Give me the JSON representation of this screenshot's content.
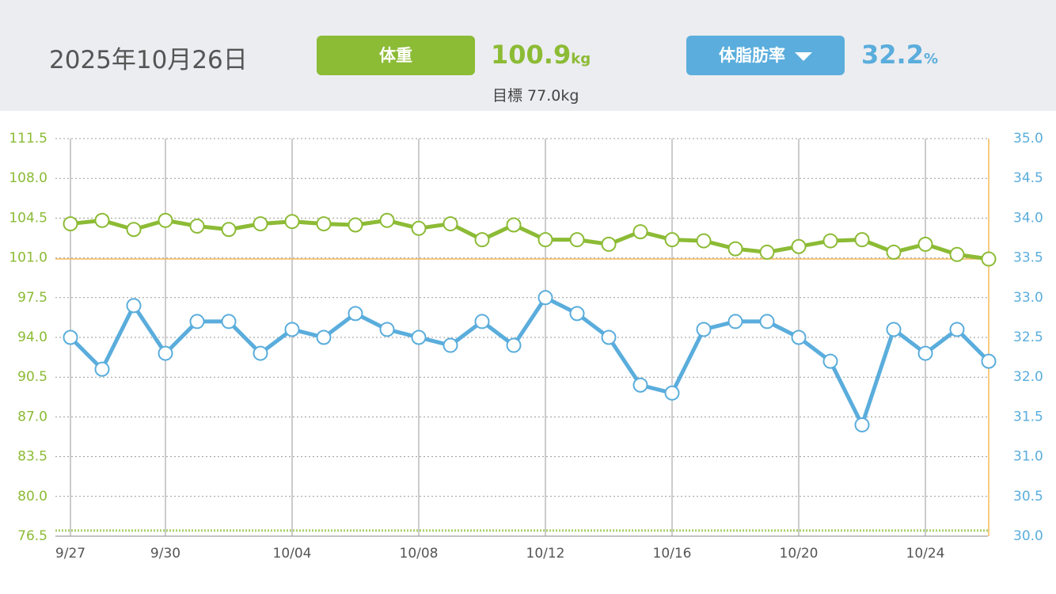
{
  "header": {
    "date": "2025年10月26日",
    "weight_value": "100.9",
    "weight_unit": "kg",
    "target": "目標 77.0kg",
    "fat_value": "32.2",
    "fat_unit": "%"
  },
  "chart_data": {
    "type": "line",
    "categories": [
      "9/27",
      null,
      null,
      "9/30",
      null,
      null,
      null,
      "10/04",
      null,
      null,
      null,
      "10/08",
      null,
      null,
      null,
      "10/12",
      null,
      null,
      null,
      "10/16",
      null,
      null,
      null,
      "10/20",
      null,
      null,
      null,
      "10/24",
      null,
      null
    ],
    "series": [
      {
        "name": "体重",
        "color": "#8cbb35",
        "values": [
          104.0,
          104.3,
          103.5,
          104.3,
          103.8,
          103.5,
          104.0,
          104.2,
          104.0,
          103.9,
          104.3,
          103.6,
          104.0,
          102.6,
          103.9,
          102.6,
          102.6,
          102.2,
          103.3,
          102.6,
          102.5,
          101.8,
          101.5,
          102.0,
          102.5,
          102.6,
          101.5,
          102.2,
          101.3,
          100.9
        ]
      },
      {
        "name": "体脂肪率",
        "color": "#5aaddc",
        "axis": "y2",
        "values": [
          32.5,
          32.1,
          32.9,
          32.3,
          32.7,
          32.7,
          32.3,
          32.6,
          32.5,
          32.8,
          32.6,
          32.5,
          32.4,
          32.7,
          32.4,
          33.0,
          32.8,
          32.5,
          31.9,
          31.8,
          32.6,
          32.7,
          32.7,
          32.5,
          32.2,
          31.4,
          32.6,
          32.3,
          32.6,
          32.2
        ]
      }
    ],
    "target_line": 77.0,
    "ylim": [
      76.5,
      111.5
    ],
    "yticks": [
      76.5,
      {
        "value": 80,
        "label": "80.0"
      },
      83.5,
      {
        "value": 87,
        "label": "87.0"
      },
      90.5,
      {
        "value": 94,
        "label": "94.0"
      },
      97.5,
      {
        "value": 101,
        "label": "101.0"
      },
      104.5,
      {
        "value": 108,
        "label": "108.0"
      },
      111.5
    ],
    "y2lim": [
      30,
      35
    ],
    "y2ticks": [
      {
        "value": 30,
        "label": "30.0"
      },
      30.5,
      {
        "value": 31,
        "label": "31.0"
      },
      31.5,
      {
        "value": 32,
        "label": "32.0"
      },
      32.5,
      {
        "value": 33,
        "label": "33.0"
      },
      33.5,
      {
        "value": 34,
        "label": "34.0"
      },
      34.5,
      {
        "value": 35,
        "label": "35.0"
      }
    ],
    "grid": true
  }
}
